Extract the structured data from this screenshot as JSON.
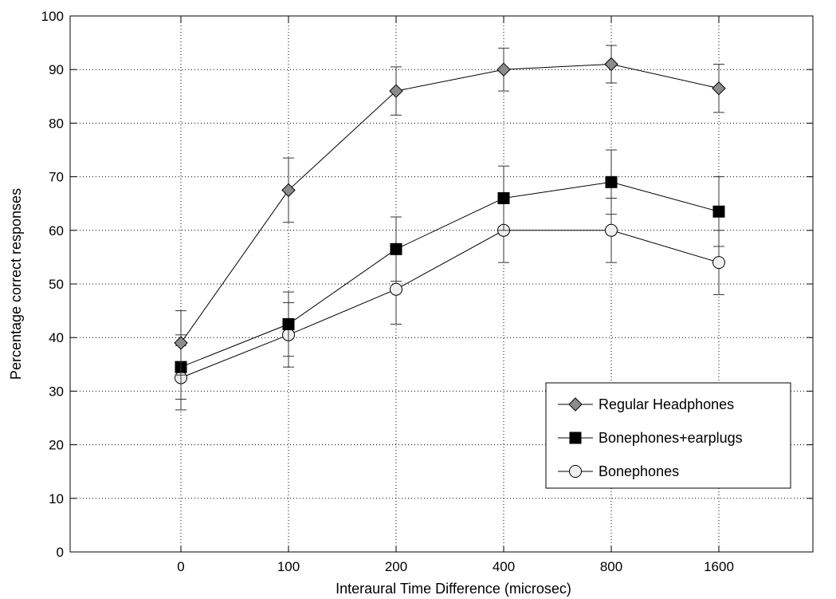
{
  "chart_data": {
    "type": "line",
    "title": "",
    "xlabel": "Interaural Time Difference (microsec)",
    "ylabel": "Percentage correct responses",
    "categories": [
      "0",
      "100",
      "200",
      "400",
      "800",
      "1600"
    ],
    "ylim": [
      0,
      100
    ],
    "yticks": [
      0,
      10,
      20,
      30,
      40,
      50,
      60,
      70,
      80,
      90,
      100
    ],
    "grid": true,
    "legend_position": "lower-right",
    "series": [
      {
        "name": "Regular Headphones",
        "marker": "diamond",
        "marker_color": "#8c8c8c",
        "values": [
          39,
          67.5,
          86,
          90,
          91,
          86.5
        ],
        "errors": [
          6,
          6,
          4.5,
          4,
          3.5,
          4.5
        ]
      },
      {
        "name": "Bonephones+earplugs",
        "marker": "square",
        "marker_color": "#000000",
        "values": [
          34.5,
          42.5,
          56.5,
          66,
          69,
          63.5
        ],
        "errors": [
          6,
          6,
          6,
          6,
          6,
          6.5
        ]
      },
      {
        "name": "Bonephones",
        "marker": "circle",
        "marker_color": "#f0f0f0",
        "values": [
          32.5,
          40.5,
          49,
          60,
          60,
          54
        ],
        "errors": [
          6,
          6,
          6.5,
          6,
          6,
          6
        ]
      }
    ]
  }
}
